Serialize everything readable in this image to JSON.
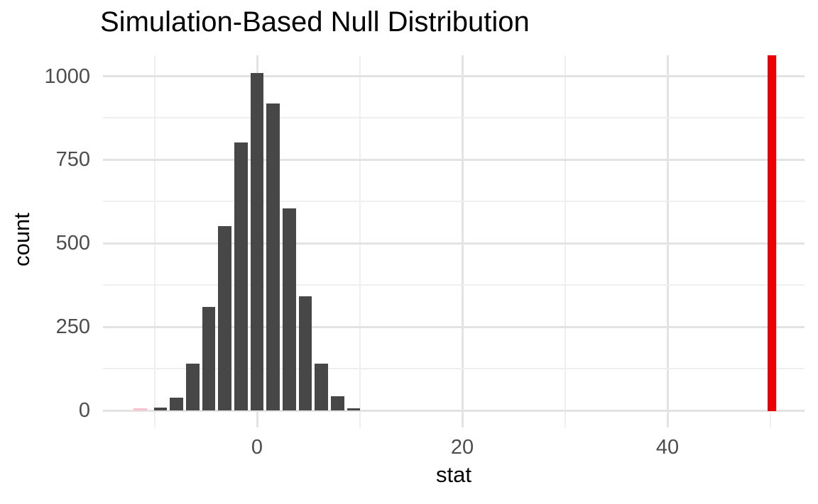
{
  "title": "Simulation-Based Null Distribution",
  "x_axis": {
    "label": "stat",
    "tick_labels": [
      "0",
      "20",
      "40"
    ],
    "tick_values": [
      0,
      20,
      40
    ],
    "minor_tick_values": [
      -10,
      10,
      30,
      50
    ]
  },
  "y_axis": {
    "label": "count",
    "tick_labels": [
      "0",
      "250",
      "500",
      "750",
      "1000"
    ],
    "tick_values": [
      0,
      250,
      500,
      750,
      1000
    ],
    "minor_tick_values": [
      125,
      375,
      625,
      875
    ]
  },
  "colors": {
    "bar_fill": "#474747",
    "shaded_bar_fill": "#ffc0cb",
    "observed_line": "#ee0000",
    "grid_major": "#e3e3e3",
    "grid_minor": "#efefef",
    "axis_text": "#4d4d4d",
    "title_text": "#000000",
    "background": "#ffffff"
  },
  "chart_data": {
    "type": "bar",
    "title": "Simulation-Based Null Distribution",
    "xlabel": "stat",
    "ylabel": "count",
    "bin_width": 1.57,
    "bins": [
      {
        "stat": -11.4,
        "count": 2,
        "shaded": true
      },
      {
        "stat": -9.4,
        "count": 8
      },
      {
        "stat": -7.84,
        "count": 38
      },
      {
        "stat": -6.27,
        "count": 141
      },
      {
        "stat": -4.7,
        "count": 310
      },
      {
        "stat": -3.14,
        "count": 551
      },
      {
        "stat": -1.57,
        "count": 802
      },
      {
        "stat": 0,
        "count": 1010
      },
      {
        "stat": 1.57,
        "count": 918
      },
      {
        "stat": 3.14,
        "count": 605
      },
      {
        "stat": 4.7,
        "count": 341
      },
      {
        "stat": 6.27,
        "count": 141
      },
      {
        "stat": 7.84,
        "count": 43
      },
      {
        "stat": 9.4,
        "count": 3
      }
    ],
    "observed_stat": 50.2,
    "xlim": [
      -15,
      53.4
    ],
    "ylim": [
      0,
      1065
    ],
    "x_ticks": [
      0,
      20,
      40
    ],
    "y_ticks": [
      0,
      250,
      500,
      750,
      1000
    ],
    "grid": "on",
    "legend": "none"
  }
}
